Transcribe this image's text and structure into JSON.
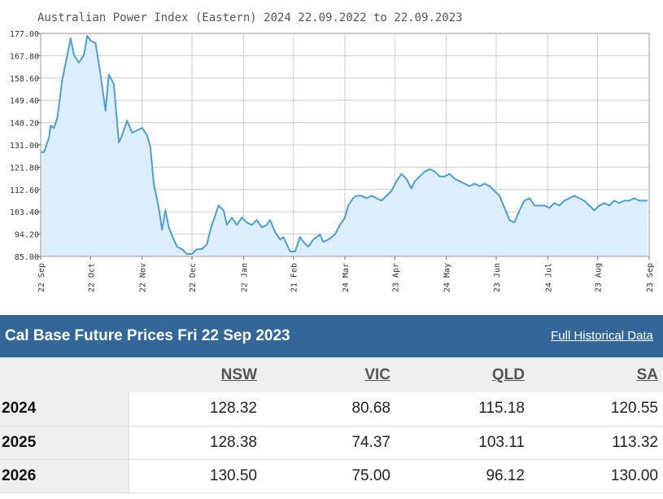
{
  "chart_data": {
    "type": "area",
    "title": "Australian Power Index (Eastern) 2024 22.09.2022 to 22.09.2023",
    "xlabel": "",
    "ylabel": "",
    "ylim": [
      85.0,
      177.0
    ],
    "yticks": [
      "177.00",
      "167.80",
      "158.60",
      "149.40",
      "140.20",
      "131.00",
      "121.80",
      "112.60",
      "103.40",
      "94.20",
      "85.00"
    ],
    "xticks": [
      {
        "label": "22 Sep",
        "date": "2022-09-22"
      },
      {
        "label": "22 Oct",
        "date": "2022-10-22"
      },
      {
        "label": "22 Nov",
        "date": "2022-11-22"
      },
      {
        "label": "22 Dec",
        "date": "2022-12-22"
      },
      {
        "label": "22 Jan",
        "date": "2023-01-22"
      },
      {
        "label": "21 Feb",
        "date": "2023-02-21"
      },
      {
        "label": "24 Mar",
        "date": "2023-03-24"
      },
      {
        "label": "23 Apr",
        "date": "2023-04-23"
      },
      {
        "label": "24 May",
        "date": "2023-05-24"
      },
      {
        "label": "23 Jun",
        "date": "2023-06-23"
      },
      {
        "label": "24 Jul",
        "date": "2023-07-24"
      },
      {
        "label": "23 Aug",
        "date": "2023-08-23"
      },
      {
        "label": "23 Sep",
        "date": "2023-09-23"
      }
    ],
    "grid": true,
    "line_color": "#4a9fd4",
    "fill_color": "#ddeeff",
    "series": [
      {
        "points": [
          [
            "2022-09-22",
            128
          ],
          [
            "2022-09-24",
            128
          ],
          [
            "2022-09-27",
            134
          ],
          [
            "2022-09-28",
            139
          ],
          [
            "2022-09-30",
            138
          ],
          [
            "2022-10-02",
            142
          ],
          [
            "2022-10-05",
            158
          ],
          [
            "2022-10-08",
            168
          ],
          [
            "2022-10-10",
            175
          ],
          [
            "2022-10-12",
            168
          ],
          [
            "2022-10-15",
            165
          ],
          [
            "2022-10-18",
            168
          ],
          [
            "2022-10-20",
            176
          ],
          [
            "2022-10-22",
            174
          ],
          [
            "2022-10-25",
            173
          ],
          [
            "2022-10-28",
            160
          ],
          [
            "2022-10-31",
            145
          ],
          [
            "2022-11-02",
            160
          ],
          [
            "2022-11-05",
            156
          ],
          [
            "2022-11-07",
            140
          ],
          [
            "2022-11-08",
            132
          ],
          [
            "2022-11-10",
            135
          ],
          [
            "2022-11-13",
            141
          ],
          [
            "2022-11-16",
            136
          ],
          [
            "2022-11-19",
            137
          ],
          [
            "2022-11-22",
            138
          ],
          [
            "2022-11-25",
            135
          ],
          [
            "2022-11-27",
            130
          ],
          [
            "2022-11-29",
            115
          ],
          [
            "2022-12-02",
            105
          ],
          [
            "2022-12-04",
            96
          ],
          [
            "2022-12-06",
            104
          ],
          [
            "2022-12-08",
            97
          ],
          [
            "2022-12-11",
            92
          ],
          [
            "2022-12-13",
            89
          ],
          [
            "2022-12-16",
            88
          ],
          [
            "2022-12-19",
            86
          ],
          [
            "2022-12-22",
            86
          ],
          [
            "2022-12-25",
            88
          ],
          [
            "2022-12-28",
            88
          ],
          [
            "2022-12-31",
            90
          ],
          [
            "2023-01-01",
            93
          ],
          [
            "2023-01-03",
            98
          ],
          [
            "2023-01-05",
            102
          ],
          [
            "2023-01-07",
            106
          ],
          [
            "2023-01-10",
            104
          ],
          [
            "2023-01-12",
            98
          ],
          [
            "2023-01-15",
            101
          ],
          [
            "2023-01-18",
            98
          ],
          [
            "2023-01-21",
            101
          ],
          [
            "2023-01-24",
            99
          ],
          [
            "2023-01-27",
            98
          ],
          [
            "2023-01-30",
            100
          ],
          [
            "2023-02-02",
            97
          ],
          [
            "2023-02-05",
            98
          ],
          [
            "2023-02-07",
            100
          ],
          [
            "2023-02-10",
            95
          ],
          [
            "2023-02-13",
            92
          ],
          [
            "2023-02-15",
            93
          ],
          [
            "2023-02-17",
            90
          ],
          [
            "2023-02-19",
            87
          ],
          [
            "2023-02-22",
            87
          ],
          [
            "2023-02-25",
            93
          ],
          [
            "2023-02-27",
            91
          ],
          [
            "2023-03-02",
            89
          ],
          [
            "2023-03-05",
            92
          ],
          [
            "2023-03-09",
            94
          ],
          [
            "2023-03-11",
            91
          ],
          [
            "2023-03-14",
            92
          ],
          [
            "2023-03-18",
            94
          ],
          [
            "2023-03-21",
            98
          ],
          [
            "2023-03-24",
            101
          ],
          [
            "2023-03-26",
            106
          ],
          [
            "2023-03-29",
            109
          ],
          [
            "2023-03-31",
            110
          ],
          [
            "2023-04-03",
            110
          ],
          [
            "2023-04-06",
            109
          ],
          [
            "2023-04-09",
            110
          ],
          [
            "2023-04-12",
            109
          ],
          [
            "2023-04-15",
            108
          ],
          [
            "2023-04-18",
            110
          ],
          [
            "2023-04-21",
            112
          ],
          [
            "2023-04-24",
            116
          ],
          [
            "2023-04-27",
            119
          ],
          [
            "2023-04-30",
            117
          ],
          [
            "2023-05-03",
            113
          ],
          [
            "2023-05-05",
            116
          ],
          [
            "2023-05-08",
            118
          ],
          [
            "2023-05-11",
            120
          ],
          [
            "2023-05-14",
            121
          ],
          [
            "2023-05-17",
            120
          ],
          [
            "2023-05-20",
            118
          ],
          [
            "2023-05-23",
            118
          ],
          [
            "2023-05-26",
            119
          ],
          [
            "2023-05-29",
            117
          ],
          [
            "2023-06-01",
            116
          ],
          [
            "2023-06-04",
            115
          ],
          [
            "2023-06-07",
            114
          ],
          [
            "2023-06-10",
            115
          ],
          [
            "2023-06-13",
            114
          ],
          [
            "2023-06-16",
            115
          ],
          [
            "2023-06-19",
            114
          ],
          [
            "2023-06-22",
            112
          ],
          [
            "2023-06-25",
            110
          ],
          [
            "2023-06-28",
            105
          ],
          [
            "2023-07-01",
            100
          ],
          [
            "2023-07-04",
            99
          ],
          [
            "2023-07-07",
            104
          ],
          [
            "2023-07-10",
            108
          ],
          [
            "2023-07-13",
            109
          ],
          [
            "2023-07-16",
            106
          ],
          [
            "2023-07-19",
            106
          ],
          [
            "2023-07-22",
            106
          ],
          [
            "2023-07-25",
            105
          ],
          [
            "2023-07-28",
            107
          ],
          [
            "2023-07-31",
            106
          ],
          [
            "2023-08-03",
            108
          ],
          [
            "2023-08-06",
            109
          ],
          [
            "2023-08-09",
            110
          ],
          [
            "2023-08-12",
            109
          ],
          [
            "2023-08-15",
            108
          ],
          [
            "2023-08-18",
            106
          ],
          [
            "2023-08-21",
            104
          ],
          [
            "2023-08-24",
            106
          ],
          [
            "2023-08-27",
            107
          ],
          [
            "2023-08-30",
            106
          ],
          [
            "2023-09-02",
            108
          ],
          [
            "2023-09-05",
            107
          ],
          [
            "2023-09-08",
            108
          ],
          [
            "2023-09-11",
            108
          ],
          [
            "2023-09-14",
            109
          ],
          [
            "2023-09-17",
            108
          ],
          [
            "2023-09-20",
            108
          ],
          [
            "2023-09-22",
            108
          ]
        ]
      }
    ]
  },
  "prices": {
    "title": "Cal Base Future Prices Fri 22 Sep 2023",
    "link_label": "Full Historical Data",
    "columns": [
      "NSW",
      "VIC",
      "QLD",
      "SA"
    ],
    "rows": [
      {
        "year": "2024",
        "values": [
          "128.32",
          "80.68",
          "115.18",
          "120.55"
        ]
      },
      {
        "year": "2025",
        "values": [
          "128.38",
          "74.37",
          "103.11",
          "113.32"
        ]
      },
      {
        "year": "2026",
        "values": [
          "130.50",
          "75.00",
          "96.12",
          "130.00"
        ]
      }
    ]
  }
}
